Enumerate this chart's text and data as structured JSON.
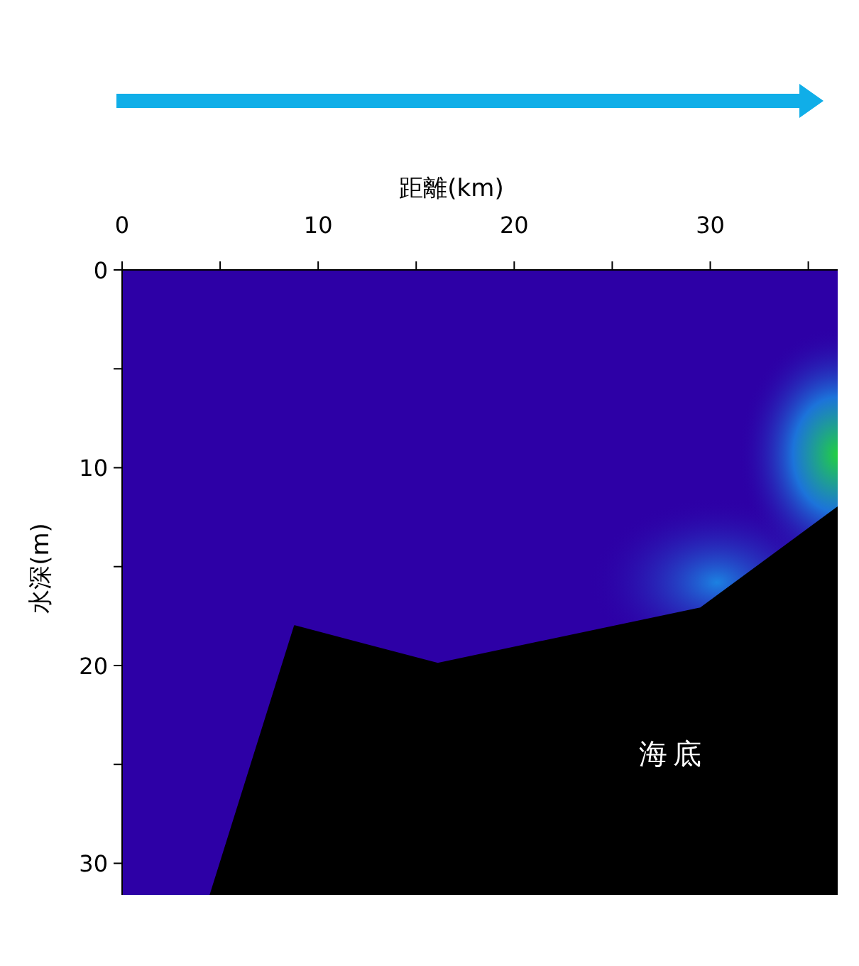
{
  "chart_data": {
    "type": "area",
    "xlabel": "距離(km)",
    "ylabel": "水深(m)",
    "x": [
      4.5,
      8.8,
      16.1,
      29.5,
      36.5
    ],
    "series": [
      {
        "color": "#000000",
        "values": [
          31.6,
          18,
          19.9,
          17.1,
          12
        ]
      }
    ],
    "xlim": [
      0,
      36.5
    ],
    "ylim": [
      31.6,
      0
    ],
    "xticks": [
      0,
      {
        "value": 5,
        "label": null
      },
      10,
      {
        "value": 15,
        "label": null
      },
      20,
      {
        "value": 25,
        "label": null
      },
      30,
      {
        "value": 35,
        "label": null
      }
    ],
    "yticks": [
      0,
      {
        "value": 5,
        "label": null
      },
      10,
      {
        "value": 15,
        "label": null
      },
      20,
      {
        "value": 25,
        "label": null
      },
      30
    ],
    "annotations": [
      "海底"
    ],
    "grid": false
  }
}
